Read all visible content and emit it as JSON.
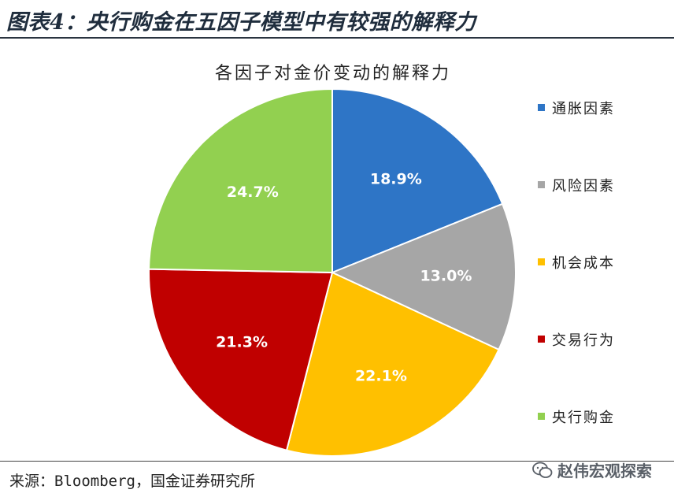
{
  "figure_title": "图表4：央行购金在五因子模型中有较强的解释力",
  "source_text": "来源：Bloomberg，国金证券研究所",
  "watermark_text": "赵伟宏观探索",
  "colors": {
    "blue": "#2e75c6",
    "gray": "#a6a6a6",
    "gold": "#ffc000",
    "red": "#c00000",
    "green": "#92d050"
  },
  "chart_data": {
    "type": "pie",
    "title": "各因子对金价变动的解释力",
    "categories": [
      "通胀因素",
      "风险因素",
      "机会成本",
      "交易行为",
      "央行购金"
    ],
    "values": [
      18.9,
      13.0,
      22.1,
      21.3,
      24.7
    ],
    "labels": [
      "18.9%",
      "13.0%",
      "22.1%",
      "21.3%",
      "24.7%"
    ],
    "colors": [
      "#2e75c6",
      "#a6a6a6",
      "#ffc000",
      "#c00000",
      "#92d050"
    ],
    "legend_position": "right"
  }
}
